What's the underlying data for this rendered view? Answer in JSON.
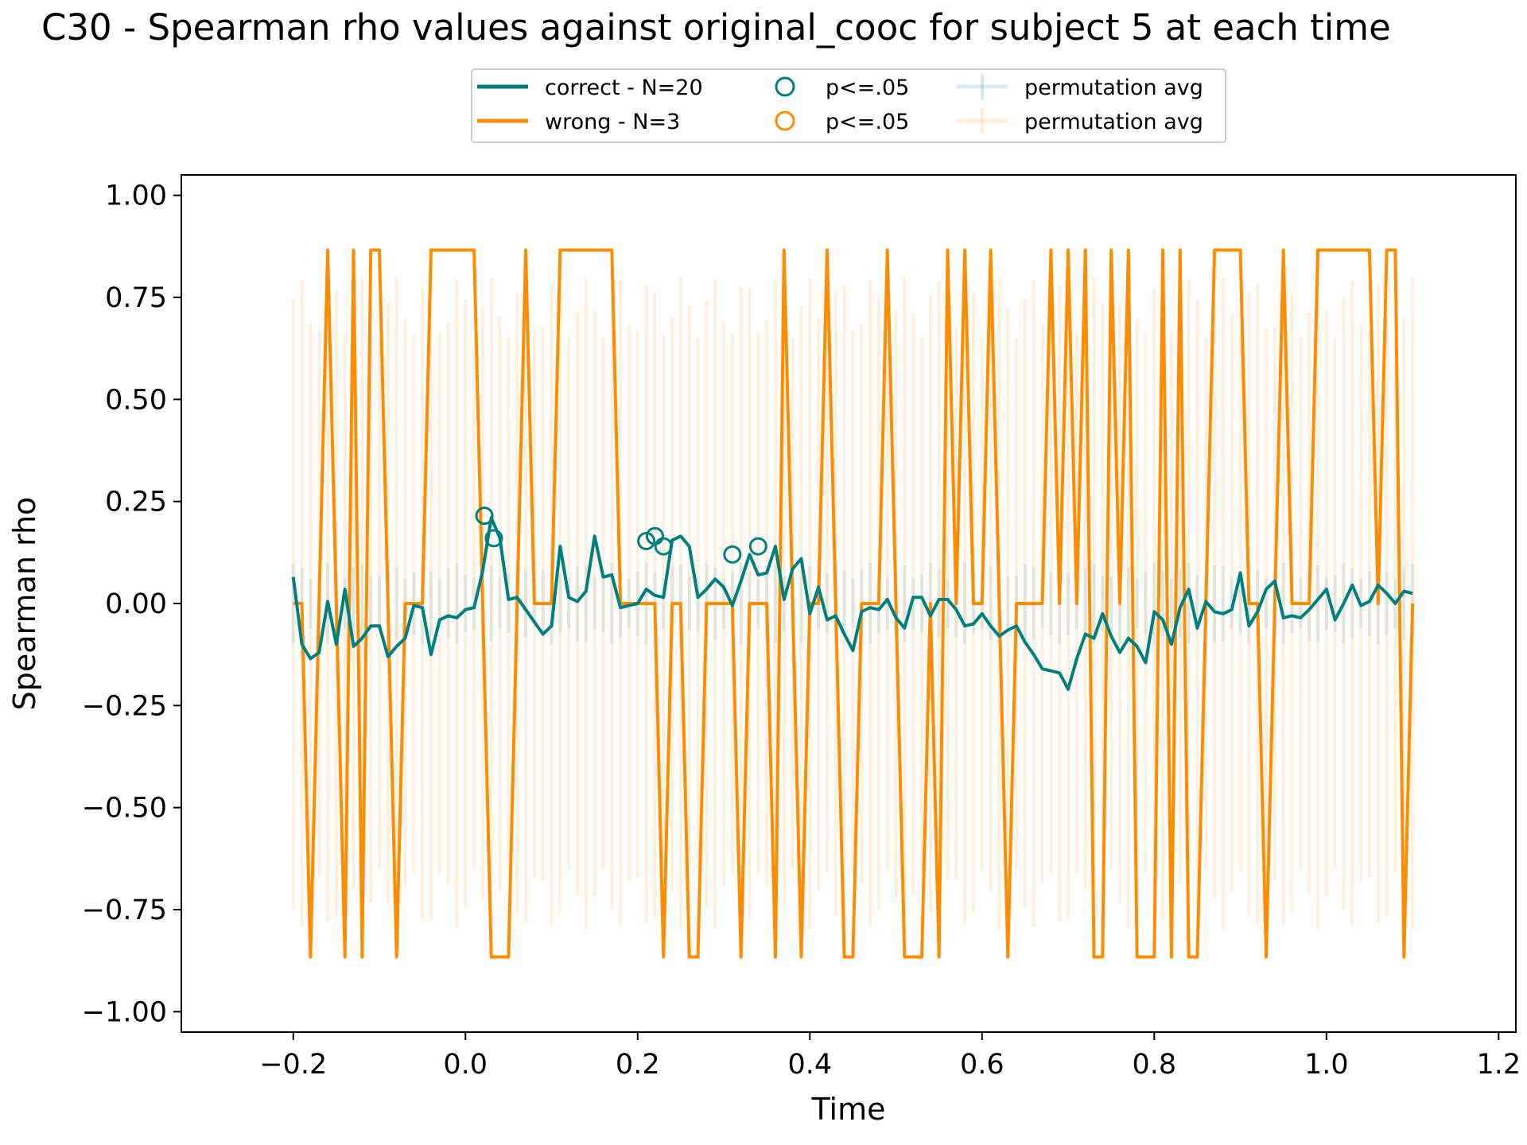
{
  "chart_data": {
    "type": "line",
    "title": "C30 - Spearman rho values against original_cooc for subject 5 at each time",
    "xlabel": "Time",
    "ylabel": "Spearman rho",
    "xlim": [
      -0.33,
      1.22
    ],
    "ylim": [
      -1.05,
      1.05
    ],
    "xticks": [
      -0.2,
      0.0,
      0.2,
      0.4,
      0.6,
      0.8,
      1.0,
      1.2
    ],
    "xtick_labels": [
      "−0.2",
      "0.0",
      "0.2",
      "0.4",
      "0.6",
      "0.8",
      "1.0",
      "1.2"
    ],
    "yticks": [
      1.0,
      0.75,
      0.5,
      0.25,
      0.0,
      -0.25,
      -0.5,
      -0.75,
      -1.0
    ],
    "ytick_labels": [
      "1.00",
      "0.75",
      "0.50",
      "0.25",
      "0.00",
      "−0.25",
      "−0.50",
      "−0.75",
      "−1.00"
    ],
    "grid": false,
    "legend_position": "top-center",
    "legend": {
      "items": [
        {
          "label": "correct - N=20",
          "kind": "line",
          "color": "#007f7f"
        },
        {
          "label": "wrong - N=3",
          "kind": "line",
          "color": "#ff8c00"
        },
        {
          "label": "p<=.05",
          "kind": "circle",
          "color": "#007f7f"
        },
        {
          "label": "p<=.05",
          "kind": "circle",
          "color": "#ff8c00"
        },
        {
          "label": "permutation avg",
          "kind": "errorbar",
          "color": "#007f7f"
        },
        {
          "label": "permutation avg",
          "kind": "errorbar",
          "color": "#ff8c00"
        }
      ]
    },
    "x_start": -0.2,
    "x_step": 0.01,
    "series": [
      {
        "name": "correct - N=20",
        "color": "#007f7f",
        "values": [
          0.065,
          -0.1,
          -0.135,
          -0.12,
          0.005,
          -0.1,
          0.035,
          -0.105,
          -0.085,
          -0.055,
          -0.055,
          -0.13,
          -0.105,
          -0.085,
          -0.005,
          -0.01,
          -0.125,
          -0.04,
          -0.03,
          -0.035,
          -0.015,
          -0.01,
          0.08,
          0.21,
          0.16,
          0.01,
          0.015,
          -0.015,
          -0.045,
          -0.075,
          -0.055,
          0.14,
          0.015,
          0.005,
          0.03,
          0.165,
          0.065,
          0.07,
          -0.01,
          -0.005,
          0.0,
          0.035,
          0.02,
          0.015,
          0.155,
          0.165,
          0.14,
          0.015,
          0.035,
          0.06,
          0.04,
          -0.005,
          0.055,
          0.12,
          0.07,
          0.075,
          0.14,
          0.01,
          0.085,
          0.11,
          -0.025,
          0.04,
          -0.04,
          -0.03,
          -0.075,
          -0.115,
          -0.02,
          -0.01,
          -0.015,
          0.01,
          -0.035,
          -0.06,
          0.015,
          0.015,
          -0.03,
          0.01,
          0.01,
          -0.015,
          -0.055,
          -0.05,
          -0.025,
          -0.055,
          -0.08,
          -0.065,
          -0.055,
          -0.095,
          -0.125,
          -0.16,
          -0.165,
          -0.17,
          -0.21,
          -0.135,
          -0.075,
          -0.085,
          -0.025,
          -0.08,
          -0.12,
          -0.085,
          -0.105,
          -0.145,
          -0.02,
          -0.04,
          -0.1,
          -0.01,
          0.035,
          -0.06,
          0.005,
          -0.02,
          -0.025,
          -0.015,
          0.075,
          -0.055,
          -0.02,
          0.035,
          0.055,
          -0.035,
          -0.03,
          -0.035,
          -0.015,
          0.01,
          0.035,
          -0.04,
          0.0,
          0.045,
          -0.005,
          0.005,
          0.045,
          0.025,
          0.0,
          0.03,
          0.025
        ]
      },
      {
        "name": "wrong - N=3",
        "color": "#ff8c00",
        "values": [
          0.0,
          0.0,
          -0.866,
          0.0,
          0.866,
          0.0,
          -0.866,
          0.866,
          -0.866,
          0.866,
          0.866,
          0.0,
          -0.866,
          0.0,
          0.0,
          0.0,
          0.866,
          0.866,
          0.866,
          0.866,
          0.866,
          0.866,
          0.0,
          -0.866,
          -0.866,
          -0.866,
          0.0,
          0.866,
          0.0,
          0.0,
          0.0,
          0.866,
          0.866,
          0.866,
          0.866,
          0.866,
          0.866,
          0.866,
          0.0,
          0.0,
          0.0,
          0.0,
          0.0,
          -0.866,
          0.0,
          0.0,
          -0.866,
          -0.866,
          0.0,
          0.0,
          0.0,
          0.0,
          -0.866,
          0.0,
          0.0,
          0.0,
          -0.866,
          0.866,
          0.0,
          -0.866,
          0.0,
          0.0,
          0.866,
          0.0,
          -0.866,
          -0.866,
          0.0,
          0.0,
          0.0,
          0.866,
          0.0,
          -0.866,
          -0.866,
          -0.866,
          0.0,
          -0.866,
          0.866,
          0.0,
          0.866,
          0.0,
          0.0,
          0.866,
          0.0,
          -0.866,
          0.0,
          0.0,
          0.0,
          0.0,
          0.866,
          0.0,
          0.866,
          0.0,
          0.866,
          -0.866,
          -0.866,
          0.866,
          0.0,
          0.866,
          -0.866,
          -0.866,
          -0.866,
          0.866,
          -0.866,
          0.866,
          -0.866,
          -0.866,
          0.0,
          0.866,
          0.866,
          0.866,
          0.866,
          0.0,
          0.0,
          -0.866,
          0.0,
          0.866,
          0.0,
          0.0,
          0.0,
          0.866,
          0.866,
          0.866,
          0.866,
          0.866,
          0.866,
          0.866,
          0.0,
          0.866,
          0.866,
          -0.866,
          0.0
        ]
      }
    ],
    "significant_points": [
      {
        "series": "correct - N=20",
        "x": 0.022,
        "y": 0.215
      },
      {
        "series": "correct - N=20",
        "x": 0.033,
        "y": 0.16
      },
      {
        "series": "correct - N=20",
        "x": 0.21,
        "y": 0.153
      },
      {
        "series": "correct - N=20",
        "x": 0.22,
        "y": 0.165
      },
      {
        "series": "correct - N=20",
        "x": 0.23,
        "y": 0.14
      },
      {
        "series": "correct - N=20",
        "x": 0.31,
        "y": 0.12
      },
      {
        "series": "correct - N=20",
        "x": 0.34,
        "y": 0.14
      }
    ],
    "permutation": {
      "correct": {
        "center": 0.0,
        "half_range_min": 0.06,
        "half_range_max": 0.1,
        "color": "#007f7f",
        "alpha": 0.1
      },
      "wrong": {
        "center": 0.0,
        "half_range_min": 0.65,
        "half_range_max": 0.8,
        "color": "#ff8c00",
        "alpha": 0.13
      }
    }
  }
}
